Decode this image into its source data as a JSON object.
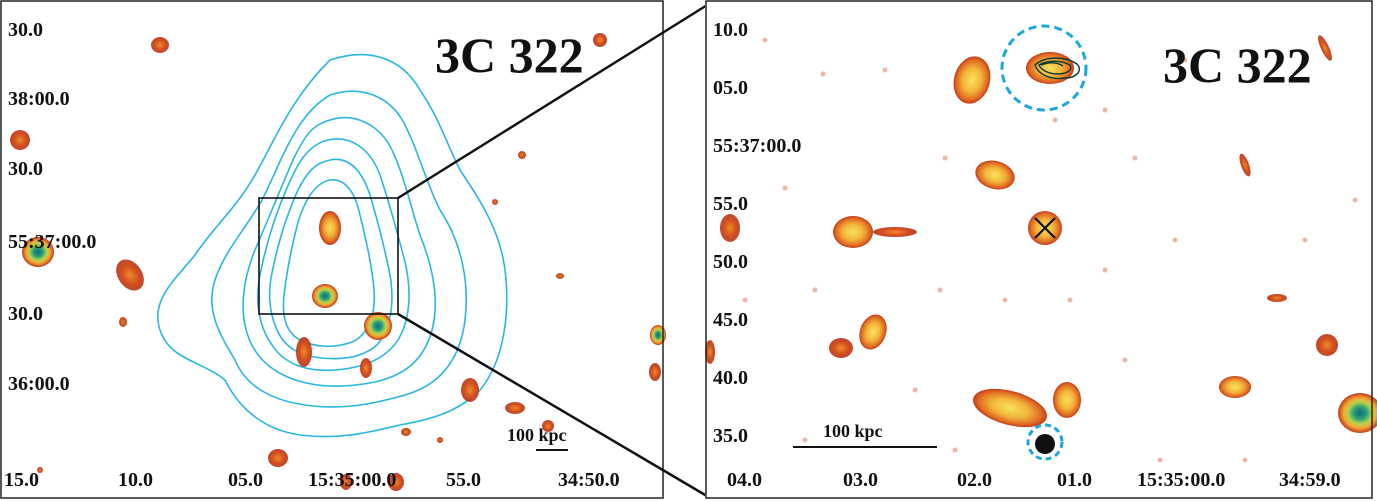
{
  "figure": {
    "left": {
      "title": "3C 322",
      "y_ticks": [
        "30.0",
        "38:00.0",
        "30.0",
        "55:37:00.0",
        "30.0",
        "36:00.0"
      ],
      "x_ticks": [
        "15.0",
        "10.0",
        "05.0",
        "15:35:00.0",
        "55.0",
        "34:50.0"
      ],
      "scale_bar": "100 kpc"
    },
    "right": {
      "title": "3C 322",
      "y_ticks": [
        "10.0",
        "05.0",
        "55:37:00.0",
        "55.0",
        "50.0",
        "45.0",
        "40.0",
        "35.0"
      ],
      "x_ticks": [
        "04.0",
        "03.0",
        "02.0",
        "01.0",
        "15:35:00.0",
        "34:59.0"
      ],
      "scale_bar": "100 kpc"
    },
    "colors": {
      "contour": "#29b6e3",
      "source_outer": "#c8341a",
      "source_mid": "#ef8a2a",
      "source_core": "#f3d34a",
      "source_peak": "#1f8f7a",
      "marker_circle": "#1aa6de"
    }
  }
}
